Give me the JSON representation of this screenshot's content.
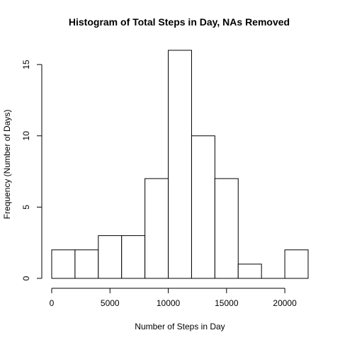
{
  "chart_data": {
    "type": "bar",
    "title": "Histogram of Total Steps in Day, NAs Removed",
    "xlabel": "Number of Steps in Day",
    "ylabel": "Frequency (Number of Days)",
    "bin_edges": [
      0,
      2000,
      4000,
      6000,
      8000,
      10000,
      12000,
      14000,
      16000,
      18000,
      20000,
      22000
    ],
    "values": [
      2,
      2,
      3,
      3,
      7,
      16,
      10,
      7,
      1,
      0,
      2
    ],
    "xlim": [
      0,
      22000
    ],
    "ylim": [
      0,
      16
    ],
    "x_ticks": [
      0,
      5000,
      10000,
      15000,
      20000
    ],
    "y_ticks": [
      0,
      5,
      10,
      15
    ],
    "grid": false,
    "legend": "none"
  }
}
